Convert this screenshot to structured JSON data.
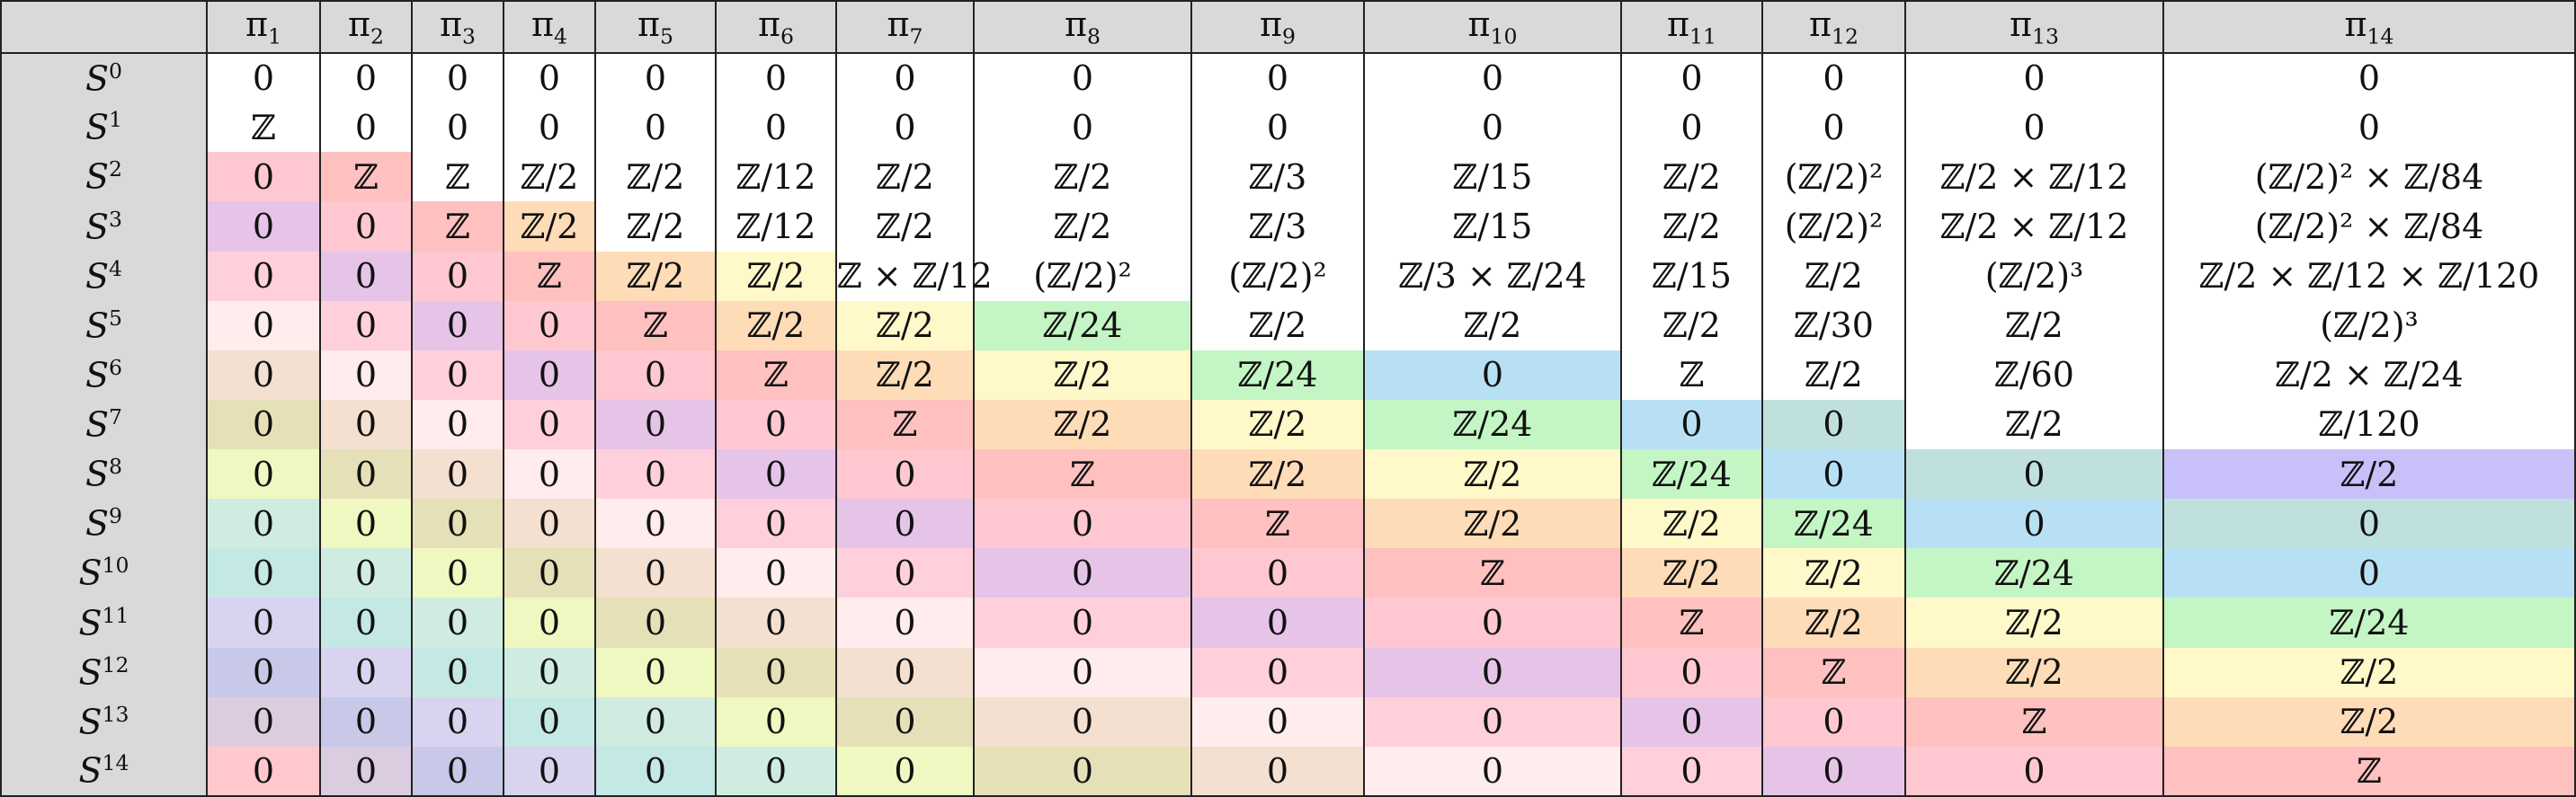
{
  "table": {
    "corner": "",
    "columns": [
      "π",
      "π",
      "π",
      "π",
      "π",
      "π",
      "π",
      "π",
      "π",
      "π",
      "π",
      "π",
      "π",
      "π"
    ],
    "column_subscripts": [
      "1",
      "2",
      "3",
      "4",
      "5",
      "6",
      "7",
      "8",
      "9",
      "10",
      "11",
      "12",
      "13",
      "14"
    ],
    "row_base": "S",
    "row_superscripts": [
      "0",
      "1",
      "2",
      "3",
      "4",
      "5",
      "6",
      "7",
      "8",
      "9",
      "10",
      "11",
      "12",
      "13",
      "14"
    ],
    "cells": [
      [
        "0",
        "0",
        "0",
        "0",
        "0",
        "0",
        "0",
        "0",
        "0",
        "0",
        "0",
        "0",
        "0",
        "0"
      ],
      [
        "ℤ",
        "0",
        "0",
        "0",
        "0",
        "0",
        "0",
        "0",
        "0",
        "0",
        "0",
        "0",
        "0",
        "0"
      ],
      [
        "0",
        "ℤ",
        "ℤ",
        "ℤ/2",
        "ℤ/2",
        "ℤ/12",
        "ℤ/2",
        "ℤ/2",
        "ℤ/3",
        "ℤ/15",
        "ℤ/2",
        "(ℤ/2)²",
        "ℤ/2 × ℤ/12",
        "(ℤ/2)² × ℤ/84"
      ],
      [
        "0",
        "0",
        "ℤ",
        "ℤ/2",
        "ℤ/2",
        "ℤ/12",
        "ℤ/2",
        "ℤ/2",
        "ℤ/3",
        "ℤ/15",
        "ℤ/2",
        "(ℤ/2)²",
        "ℤ/2 × ℤ/12",
        "(ℤ/2)² × ℤ/84"
      ],
      [
        "0",
        "0",
        "0",
        "ℤ",
        "ℤ/2",
        "ℤ/2",
        "ℤ × ℤ/12",
        "(ℤ/2)²",
        "(ℤ/2)²",
        "ℤ/3 × ℤ/24",
        "ℤ/15",
        "ℤ/2",
        "(ℤ/2)³",
        "ℤ/2 × ℤ/12 × ℤ/120"
      ],
      [
        "0",
        "0",
        "0",
        "0",
        "ℤ",
        "ℤ/2",
        "ℤ/2",
        "ℤ/24",
        "ℤ/2",
        "ℤ/2",
        "ℤ/2",
        "ℤ/30",
        "ℤ/2",
        "(ℤ/2)³"
      ],
      [
        "0",
        "0",
        "0",
        "0",
        "0",
        "ℤ",
        "ℤ/2",
        "ℤ/2",
        "ℤ/24",
        "0",
        "ℤ",
        "ℤ/2",
        "ℤ/60",
        "ℤ/2 × ℤ/24"
      ],
      [
        "0",
        "0",
        "0",
        "0",
        "0",
        "0",
        "ℤ",
        "ℤ/2",
        "ℤ/2",
        "ℤ/24",
        "0",
        "0",
        "ℤ/2",
        "ℤ/120"
      ],
      [
        "0",
        "0",
        "0",
        "0",
        "0",
        "0",
        "0",
        "ℤ",
        "ℤ/2",
        "ℤ/2",
        "ℤ/24",
        "0",
        "0",
        "ℤ/2"
      ],
      [
        "0",
        "0",
        "0",
        "0",
        "0",
        "0",
        "0",
        "0",
        "ℤ",
        "ℤ/2",
        "ℤ/2",
        "ℤ/24",
        "0",
        "0"
      ],
      [
        "0",
        "0",
        "0",
        "0",
        "0",
        "0",
        "0",
        "0",
        "0",
        "ℤ",
        "ℤ/2",
        "ℤ/2",
        "ℤ/24",
        "0"
      ],
      [
        "0",
        "0",
        "0",
        "0",
        "0",
        "0",
        "0",
        "0",
        "0",
        "0",
        "ℤ",
        "ℤ/2",
        "ℤ/2",
        "ℤ/24"
      ],
      [
        "0",
        "0",
        "0",
        "0",
        "0",
        "0",
        "0",
        "0",
        "0",
        "0",
        "0",
        "ℤ",
        "ℤ/2",
        "ℤ/2"
      ],
      [
        "0",
        "0",
        "0",
        "0",
        "0",
        "0",
        "0",
        "0",
        "0",
        "0",
        "0",
        "0",
        "ℤ",
        "ℤ/2"
      ],
      [
        "0",
        "0",
        "0",
        "0",
        "0",
        "0",
        "0",
        "0",
        "0",
        "0",
        "0",
        "0",
        "0",
        "ℤ"
      ]
    ],
    "diagonal_colors": [
      "#ffffff",
      "#ffc0c0",
      "#e8c0e0",
      "#ffcccc",
      "#ffdcb8",
      "#fff8c8",
      "#c4f5c4",
      "#b8e0f5",
      "#c0e0de",
      "#c8c0f8",
      "#c0e0de",
      "#b8e0f5",
      "#c4f5c4",
      "#fff8c8",
      "#ffdcb8"
    ],
    "stable_colors": {
      "k0": "#ffc0c0",
      "k1": "#ffdcb8",
      "k2": "#fff8c8",
      "k3": "#c4f5c4",
      "k4": "#b8e0f5",
      "k5": "#c0e0de",
      "k6": "#c8c0f8"
    },
    "zero_gradient": [
      "#ffc8d0",
      "#e6c4e8",
      "#ffd0dc",
      "#ffecec",
      "#f4e0d0",
      "#e6e0b8",
      "#eef8c0",
      "#d0ece0",
      "#c4e8e4",
      "#d8d4f0",
      "#c8c8e8",
      "#dccce0",
      "#ffc8cc"
    ]
  }
}
